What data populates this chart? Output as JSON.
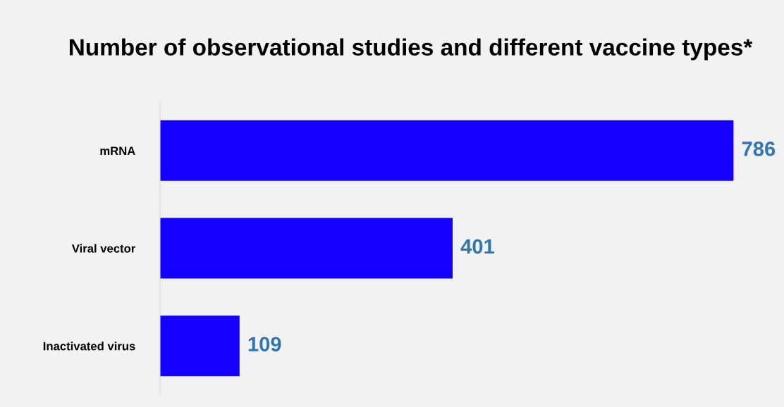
{
  "chart_data": {
    "type": "bar",
    "orientation": "horizontal",
    "title": "Number of observational studies and different vaccine types*",
    "categories": [
      "mRNA",
      "Viral vector",
      "Inactivated virus"
    ],
    "values": [
      786,
      401,
      109
    ],
    "color": "#1400ff",
    "data_labels": true,
    "tick_labels": "y"
  }
}
